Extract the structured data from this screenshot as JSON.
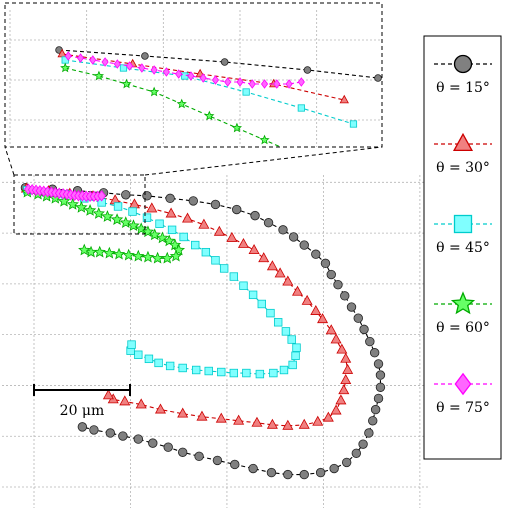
{
  "chart_data": {
    "type": "scatter",
    "title": "",
    "xlabel": "",
    "ylabel": "",
    "units": "μm",
    "scale_bar": {
      "length": 20,
      "label": "20 μm"
    },
    "xlim": [
      0,
      85
    ],
    "ylim": [
      0,
      64
    ],
    "grid": true,
    "legend_position": "right",
    "inset": {
      "position": "top-left",
      "xlim": [
        0,
        24
      ],
      "ylim": [
        57,
        63.5
      ],
      "grid": true
    },
    "series": [
      {
        "name": "θ = 15°",
        "marker": "circle",
        "line_style": "dashed",
        "color": "#000000",
        "fill": "#808080",
        "points": [
          [
            3.2,
            61.5
          ],
          [
            8.8,
            61.2
          ],
          [
            14.0,
            60.9
          ],
          [
            19.4,
            60.5
          ],
          [
            24.0,
            60.1
          ],
          [
            28.4,
            59.9
          ],
          [
            33.2,
            59.4
          ],
          [
            38.0,
            58.9
          ],
          [
            42.6,
            58.2
          ],
          [
            47.0,
            57.2
          ],
          [
            50.8,
            56.0
          ],
          [
            53.6,
            54.6
          ],
          [
            56.6,
            53.2
          ],
          [
            58.8,
            51.8
          ],
          [
            61.0,
            50.2
          ],
          [
            63.4,
            48.4
          ],
          [
            65.4,
            46.6
          ],
          [
            66.6,
            44.4
          ],
          [
            68.0,
            42.4
          ],
          [
            69.4,
            40.2
          ],
          [
            70.8,
            38.0
          ],
          [
            72.2,
            35.8
          ],
          [
            73.4,
            33.6
          ],
          [
            74.6,
            31.2
          ],
          [
            75.6,
            29.0
          ],
          [
            76.4,
            26.8
          ],
          [
            76.8,
            24.6
          ],
          [
            76.8,
            22.2
          ],
          [
            76.4,
            20.0
          ],
          [
            75.8,
            17.8
          ],
          [
            75.2,
            15.6
          ],
          [
            74.4,
            13.2
          ],
          [
            73.2,
            11.0
          ],
          [
            71.8,
            9.2
          ],
          [
            69.8,
            7.4
          ],
          [
            67.2,
            6.2
          ],
          [
            64.4,
            5.4
          ],
          [
            61.0,
            5.0
          ],
          [
            57.6,
            5.0
          ],
          [
            54.2,
            5.4
          ],
          [
            50.4,
            6.2
          ],
          [
            46.6,
            7.0
          ],
          [
            43.0,
            7.8
          ],
          [
            39.2,
            8.6
          ],
          [
            35.8,
            9.4
          ],
          [
            32.8,
            10.4
          ],
          [
            29.6,
            11.2
          ],
          [
            26.6,
            12.0
          ],
          [
            23.4,
            12.6
          ],
          [
            20.8,
            13.2
          ],
          [
            17.4,
            13.8
          ],
          [
            15.0,
            14.4
          ]
        ]
      },
      {
        "name": "θ = 30°",
        "marker": "triangle",
        "line_style": "dashed",
        "color": "#cc0000",
        "fill": "#f08080",
        "points": [
          [
            3.4,
            61.3
          ],
          [
            8.0,
            60.8
          ],
          [
            12.4,
            60.3
          ],
          [
            17.2,
            59.8
          ],
          [
            21.8,
            59.0
          ],
          [
            25.8,
            58.2
          ],
          [
            29.4,
            57.4
          ],
          [
            33.4,
            56.4
          ],
          [
            36.8,
            55.4
          ],
          [
            40.2,
            54.2
          ],
          [
            43.4,
            52.8
          ],
          [
            46.0,
            51.6
          ],
          [
            48.4,
            50.4
          ],
          [
            50.6,
            49.2
          ],
          [
            52.6,
            47.6
          ],
          [
            54.4,
            46.0
          ],
          [
            56.0,
            44.6
          ],
          [
            57.6,
            43.0
          ],
          [
            59.6,
            41.0
          ],
          [
            61.6,
            39.2
          ],
          [
            63.4,
            37.2
          ],
          [
            64.8,
            35.6
          ],
          [
            66.6,
            33.4
          ],
          [
            67.6,
            31.6
          ],
          [
            68.8,
            29.6
          ],
          [
            69.6,
            27.8
          ],
          [
            70.0,
            25.6
          ],
          [
            69.6,
            23.6
          ],
          [
            69.2,
            21.6
          ],
          [
            68.6,
            19.6
          ],
          [
            67.6,
            17.6
          ],
          [
            66.0,
            16.2
          ],
          [
            63.8,
            15.4
          ],
          [
            61.0,
            14.8
          ],
          [
            57.6,
            14.6
          ],
          [
            54.4,
            14.8
          ],
          [
            51.2,
            15.2
          ],
          [
            47.4,
            15.6
          ],
          [
            43.8,
            16.0
          ],
          [
            39.8,
            16.4
          ],
          [
            35.8,
            17.0
          ],
          [
            31.2,
            17.8
          ],
          [
            27.2,
            18.8
          ],
          [
            23.8,
            19.4
          ],
          [
            21.4,
            19.8
          ],
          [
            20.4,
            20.6
          ]
        ]
      },
      {
        "name": "θ = 45°",
        "marker": "square",
        "line_style": "dashed",
        "color": "#00cccc",
        "fill": "#80ffff",
        "points": [
          [
            3.6,
            61.0
          ],
          [
            7.4,
            60.6
          ],
          [
            11.4,
            60.2
          ],
          [
            15.4,
            59.4
          ],
          [
            19.0,
            58.6
          ],
          [
            22.4,
            57.8
          ],
          [
            25.4,
            56.8
          ],
          [
            28.4,
            55.6
          ],
          [
            31.0,
            54.4
          ],
          [
            33.6,
            53.2
          ],
          [
            36.0,
            51.8
          ],
          [
            38.4,
            50.2
          ],
          [
            40.6,
            48.8
          ],
          [
            42.6,
            47.2
          ],
          [
            44.4,
            45.6
          ],
          [
            46.4,
            44.0
          ],
          [
            48.4,
            42.2
          ],
          [
            50.4,
            40.4
          ],
          [
            52.2,
            38.6
          ],
          [
            54.0,
            36.8
          ],
          [
            55.6,
            35.0
          ],
          [
            57.2,
            33.2
          ],
          [
            58.4,
            31.6
          ],
          [
            59.4,
            30.0
          ],
          [
            59.2,
            28.4
          ],
          [
            58.6,
            26.6
          ],
          [
            56.8,
            25.6
          ],
          [
            54.6,
            25.0
          ],
          [
            51.8,
            24.8
          ],
          [
            49.0,
            25.0
          ],
          [
            46.4,
            25.0
          ],
          [
            43.8,
            25.2
          ],
          [
            41.2,
            25.4
          ],
          [
            38.6,
            25.6
          ],
          [
            35.8,
            26.0
          ],
          [
            33.2,
            26.4
          ],
          [
            30.8,
            27.0
          ],
          [
            28.8,
            27.8
          ],
          [
            26.6,
            28.6
          ],
          [
            25.0,
            29.4
          ],
          [
            25.2,
            30.6
          ]
        ]
      },
      {
        "name": "θ = 60°",
        "marker": "star",
        "line_style": "dashed",
        "color": "#00aa00",
        "fill": "#66ff66",
        "points": [
          [
            3.6,
            60.6
          ],
          [
            5.8,
            60.2
          ],
          [
            7.6,
            59.8
          ],
          [
            9.4,
            59.4
          ],
          [
            11.2,
            58.8
          ],
          [
            13.0,
            58.2
          ],
          [
            14.8,
            57.6
          ],
          [
            16.6,
            57.0
          ],
          [
            18.4,
            56.4
          ],
          [
            20.2,
            55.8
          ],
          [
            22.2,
            55.2
          ],
          [
            24.0,
            54.6
          ],
          [
            25.6,
            54.0
          ],
          [
            27.2,
            53.4
          ],
          [
            28.6,
            52.8
          ],
          [
            30.0,
            52.2
          ],
          [
            31.6,
            51.6
          ],
          [
            33.0,
            51.0
          ],
          [
            34.2,
            50.2
          ],
          [
            35.0,
            49.2
          ],
          [
            34.4,
            48.0
          ],
          [
            32.6,
            47.6
          ],
          [
            30.6,
            47.6
          ],
          [
            28.6,
            47.8
          ],
          [
            26.6,
            48.0
          ],
          [
            24.6,
            48.2
          ],
          [
            22.6,
            48.4
          ],
          [
            20.6,
            48.6
          ],
          [
            18.6,
            48.8
          ],
          [
            16.8,
            48.8
          ],
          [
            15.4,
            49.2
          ]
        ]
      },
      {
        "name": "θ = 75°",
        "marker": "diamond",
        "line_style": "dashed",
        "color": "#ff00ff",
        "fill": "#ff66ff",
        "points": [
          [
            3.8,
            61.2
          ],
          [
            4.6,
            61.1
          ],
          [
            5.4,
            61.0
          ],
          [
            6.2,
            60.9
          ],
          [
            7.0,
            60.8
          ],
          [
            7.8,
            60.7
          ],
          [
            8.6,
            60.6
          ],
          [
            9.4,
            60.5
          ],
          [
            10.2,
            60.4
          ],
          [
            11.0,
            60.3
          ],
          [
            11.8,
            60.2
          ],
          [
            12.6,
            60.1
          ],
          [
            13.4,
            60.0
          ],
          [
            14.2,
            59.9
          ],
          [
            15.0,
            59.9
          ],
          [
            15.8,
            59.8
          ],
          [
            16.6,
            59.8
          ],
          [
            17.4,
            59.8
          ],
          [
            18.2,
            59.8
          ],
          [
            19.0,
            59.9
          ]
        ]
      }
    ],
    "legend": [
      {
        "label": "θ = 15°",
        "series": 0
      },
      {
        "label": "θ = 30°",
        "series": 1
      },
      {
        "label": "θ = 45°",
        "series": 2
      },
      {
        "label": "θ = 60°",
        "series": 3
      },
      {
        "label": "θ = 75°",
        "series": 4
      }
    ]
  }
}
